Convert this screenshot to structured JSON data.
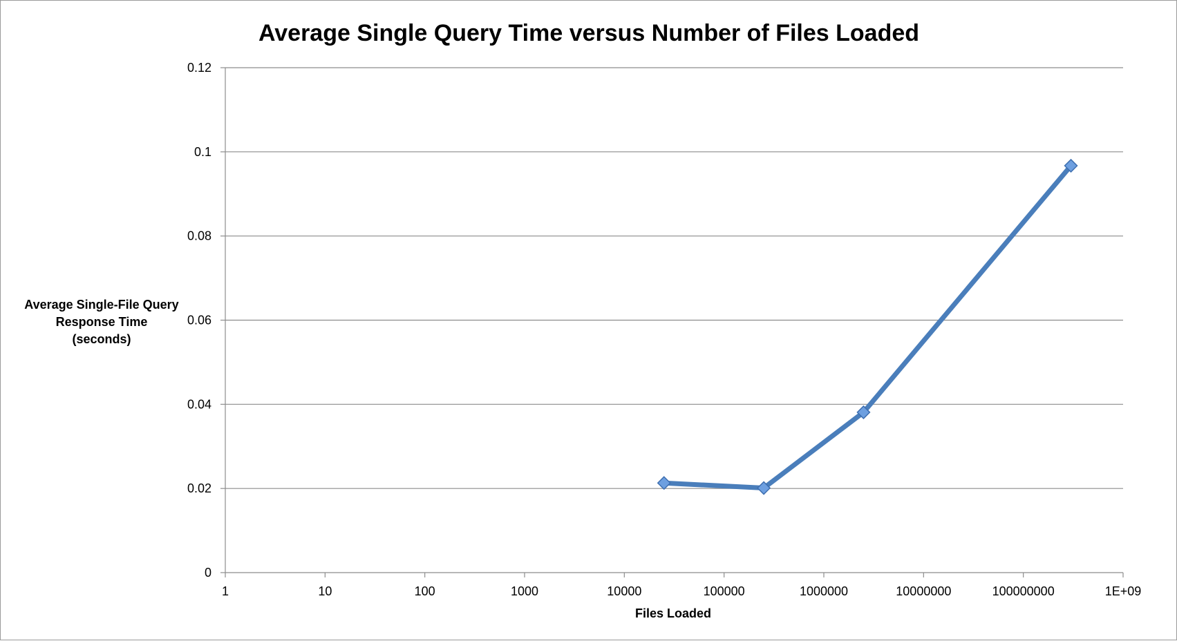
{
  "chart_data": {
    "type": "line",
    "title": "Average Single Query Time versus Number of Files Loaded",
    "xlabel": "Files Loaded",
    "ylabel_lines": [
      "Average Single-File Query",
      "Response Time",
      "(seconds)"
    ],
    "x_scale": "log10",
    "xlim": [
      1,
      1000000000
    ],
    "ylim": [
      0,
      0.12
    ],
    "x_tick_values": [
      1,
      10,
      100,
      1000,
      10000,
      100000,
      1000000,
      10000000,
      100000000,
      1000000000
    ],
    "x_tick_labels": [
      "1",
      "10",
      "100",
      "1000",
      "10000",
      "100000",
      "1000000",
      "10000000",
      "100000000",
      "1E+09"
    ],
    "y_tick_values": [
      0,
      0.02,
      0.04,
      0.06,
      0.08,
      0.1,
      0.12
    ],
    "y_tick_labels": [
      "0",
      "0.02",
      "0.04",
      "0.06",
      "0.08",
      "0.1",
      "0.12"
    ],
    "grid": "horizontal",
    "legend": "none",
    "series": [
      {
        "color": "#4a7ebb",
        "marker": "diamond",
        "x": [
          25000,
          250000,
          2500000,
          300000000
        ],
        "y": [
          0.0213,
          0.0201,
          0.0381,
          0.0967
        ]
      }
    ]
  }
}
